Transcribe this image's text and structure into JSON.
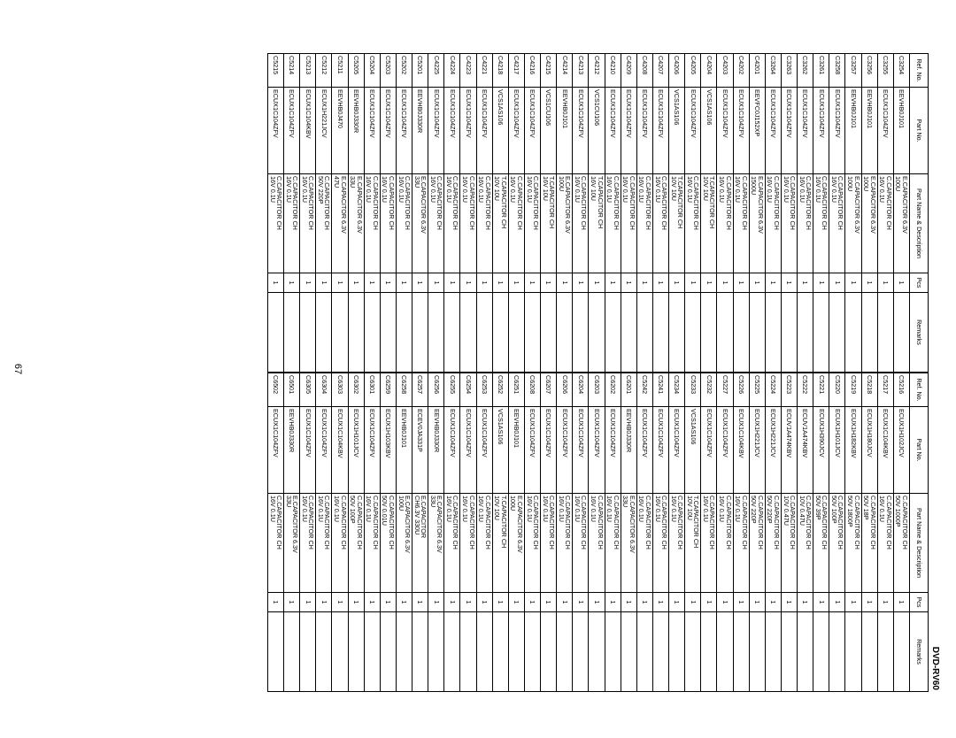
{
  "model": "DVD-RV60",
  "page_number": "67",
  "headers": {
    "ref": "Ref. No.",
    "part": "Part No.",
    "desc": "Part Name & Description",
    "pcs": "Pcs",
    "remarks": "Remarks"
  },
  "left_rows": [
    {
      "ref": "C3254",
      "part": "EEVHB0J101",
      "desc1": "E.CAPACITOR 6.3V",
      "desc2": "100U",
      "pcs": "1",
      "rem": ""
    },
    {
      "ref": "C3255",
      "part": "ECUX1C104ZFV",
      "desc1": "C.CAPACITOR CH",
      "desc2": "16V 0.1U",
      "pcs": "1",
      "rem": ""
    },
    {
      "ref": "C3256",
      "part": "EEVHB0J101",
      "desc1": "E.CAPACITOR 6.3V",
      "desc2": "100U",
      "pcs": "1",
      "rem": ""
    },
    {
      "ref": "C3257",
      "part": "EEVHB0J101",
      "desc1": "E.CAPACITOR 6.3V",
      "desc2": "100U",
      "pcs": "1",
      "rem": ""
    },
    {
      "ref": "C3258",
      "part": "ECUX1C104ZFV",
      "desc1": "C.CAPACITOR CH",
      "desc2": "16V 0.1U",
      "pcs": "1",
      "rem": ""
    },
    {
      "ref": "C3261",
      "part": "ECUX1C104ZFV",
      "desc1": "C.CAPACITOR CH",
      "desc2": "16V 0.1U",
      "pcs": "1",
      "rem": ""
    },
    {
      "ref": "C3262",
      "part": "ECUX1C104ZFV",
      "desc1": "C.CAPACITOR CH",
      "desc2": "16V 0.1U",
      "pcs": "1",
      "rem": ""
    },
    {
      "ref": "C3263",
      "part": "ECUX1C104ZFV",
      "desc1": "C.CAPACITOR CH",
      "desc2": "16V 0.1U",
      "pcs": "1",
      "rem": ""
    },
    {
      "ref": "C3264",
      "part": "ECUX1C104ZFV",
      "desc1": "C.CAPACITOR CH",
      "desc2": "16V 0.1U",
      "pcs": "1",
      "rem": ""
    },
    {
      "ref": "C4201",
      "part": "EEVFC0J152XP",
      "desc1": "E.CAPACITOR 6.3V",
      "desc2": "1500U",
      "pcs": "1",
      "rem": ""
    },
    {
      "ref": "C4202",
      "part": "ECUX1C104ZFV",
      "desc1": "C.CAPACITOR CH",
      "desc2": "16V 0.1U",
      "pcs": "1",
      "rem": ""
    },
    {
      "ref": "C4203",
      "part": "ECUX1C104ZFV",
      "desc1": "C.CAPACITOR CH",
      "desc2": "16V 0.1U",
      "pcs": "1",
      "rem": ""
    },
    {
      "ref": "C4204",
      "part": "VCS1AS106",
      "desc1": "T.CAPACITOR CH",
      "desc2": "10V 10U",
      "pcs": "1",
      "rem": ""
    },
    {
      "ref": "C4205",
      "part": "ECUX1C104ZFV",
      "desc1": "C.CAPACITOR CH",
      "desc2": "16V 0.1U",
      "pcs": "1",
      "rem": ""
    },
    {
      "ref": "C4206",
      "part": "VCS1AS106",
      "desc1": "T.CAPACITOR CH",
      "desc2": "10V 10U",
      "pcs": "1",
      "rem": ""
    },
    {
      "ref": "C4207",
      "part": "ECUX1C104ZFV",
      "desc1": "C.CAPACITOR CH",
      "desc2": "16V 0.1U",
      "pcs": "1",
      "rem": ""
    },
    {
      "ref": "C4208",
      "part": "ECUX1C104ZFV",
      "desc1": "C.CAPACITOR CH",
      "desc2": "16V 0.1U",
      "pcs": "1",
      "rem": ""
    },
    {
      "ref": "C4209",
      "part": "ECUX1C104ZFV",
      "desc1": "C.CAPACITOR CH",
      "desc2": "16V 0.1U",
      "pcs": "1",
      "rem": ""
    },
    {
      "ref": "C4210",
      "part": "ECUX1C104ZFV",
      "desc1": "C.CAPACITOR CH",
      "desc2": "16V 0.1U",
      "pcs": "1",
      "rem": ""
    },
    {
      "ref": "C4212",
      "part": "VCS1CU106",
      "desc1": "T.CAPACITOR CH",
      "desc2": "16V 10U",
      "pcs": "1",
      "rem": ""
    },
    {
      "ref": "C4213",
      "part": "ECUX1C104ZFV",
      "desc1": "C.CAPACITOR CH",
      "desc2": "16V 0.1U",
      "pcs": "1",
      "rem": ""
    },
    {
      "ref": "C4214",
      "part": "EEVHB0J101",
      "desc1": "E.CAPACITOR 6.3V",
      "desc2": "100U",
      "pcs": "1",
      "rem": ""
    },
    {
      "ref": "C4215",
      "part": "VCS1CU106",
      "desc1": "T.CAPACITOR CH",
      "desc2": "16V 10U",
      "pcs": "1",
      "rem": ""
    },
    {
      "ref": "C4216",
      "part": "ECUX1C104ZFV",
      "desc1": "C.CAPACITOR CH",
      "desc2": "16V 0.1U",
      "pcs": "1",
      "rem": ""
    },
    {
      "ref": "C4217",
      "part": "ECUX1C104ZFV",
      "desc1": "C.CAPACITOR CH",
      "desc2": "16V 0.1U",
      "pcs": "1",
      "rem": ""
    },
    {
      "ref": "C4218",
      "part": "VCS1AS106",
      "desc1": "T.CAPACITOR CH",
      "desc2": "10V 10U",
      "pcs": "1",
      "rem": ""
    },
    {
      "ref": "C4221",
      "part": "ECUX1C104ZFV",
      "desc1": "C.CAPACITOR CH",
      "desc2": "16V 0.1U",
      "pcs": "1",
      "rem": ""
    },
    {
      "ref": "C4223",
      "part": "ECUX1C104ZFV",
      "desc1": "C.CAPACITOR CH",
      "desc2": "16V 0.1U",
      "pcs": "1",
      "rem": ""
    },
    {
      "ref": "C4224",
      "part": "ECUX1C104ZFV",
      "desc1": "C.CAPACITOR CH",
      "desc2": "16V 0.1U",
      "pcs": "1",
      "rem": ""
    },
    {
      "ref": "C4225",
      "part": "ECUX1C104ZFV",
      "desc1": "C.CAPACITOR CH",
      "desc2": "16V 0.1U",
      "pcs": "1",
      "rem": ""
    },
    {
      "ref": "C5201",
      "part": "EEVHB0J330R",
      "desc1": "E.CAPACITOR 6.3V",
      "desc2": "33U",
      "pcs": "1",
      "rem": ""
    },
    {
      "ref": "C5202",
      "part": "ECUX1C104ZFV",
      "desc1": "C.CAPACITOR CH",
      "desc2": "16V 0.1U",
      "pcs": "1",
      "rem": ""
    },
    {
      "ref": "C5203",
      "part": "ECUX1C104ZFV",
      "desc1": "C.CAPACITOR CH",
      "desc2": "16V 0.1U",
      "pcs": "1",
      "rem": ""
    },
    {
      "ref": "C5204",
      "part": "ECUX1C104ZFV",
      "desc1": "C.CAPACITOR CH",
      "desc2": "16V 0.1U",
      "pcs": "1",
      "rem": ""
    },
    {
      "ref": "C5205",
      "part": "EEVHB0J330R",
      "desc1": "E.CAPACITOR 6.3V",
      "desc2": "33U",
      "pcs": "1",
      "rem": ""
    },
    {
      "ref": "C5211",
      "part": "EEVHB0J470",
      "desc1": "E.CAPACITOR 6.3V",
      "desc2": "47U",
      "pcs": "1",
      "rem": ""
    },
    {
      "ref": "C5212",
      "part": "ECUX1H221JCV",
      "desc1": "C.CAPACITOR CH",
      "desc2": "50V 220P",
      "pcs": "1",
      "rem": ""
    },
    {
      "ref": "C5213",
      "part": "ECUX1C104KBV",
      "desc1": "C.CAPACITOR CH",
      "desc2": "16V 0.1U",
      "pcs": "1",
      "rem": ""
    },
    {
      "ref": "C5214",
      "part": "ECUX1C104ZFV",
      "desc1": "C.CAPACITOR CH",
      "desc2": "16V 0.1U",
      "pcs": "1",
      "rem": ""
    },
    {
      "ref": "C5215",
      "part": "ECUX1C104ZFV",
      "desc1": "C.CAPACITOR CH",
      "desc2": "16V 0.1U",
      "pcs": "1",
      "rem": ""
    }
  ],
  "right_rows": [
    {
      "ref": "C5216",
      "part": "ECUX1H102JCV",
      "desc1": "C.CAPACITOR CH",
      "desc2": "50V 1000P",
      "pcs": "1",
      "rem": ""
    },
    {
      "ref": "C5217",
      "part": "ECUX1C104KBV",
      "desc1": "C.CAPACITOR CH",
      "desc2": "16V 0.1U",
      "pcs": "1",
      "rem": ""
    },
    {
      "ref": "C5218",
      "part": "ECUX1H180JCV",
      "desc1": "C.CAPACITOR CH",
      "desc2": "50V 18P",
      "pcs": "1",
      "rem": ""
    },
    {
      "ref": "C5219",
      "part": "ECUX1H182KBV",
      "desc1": "C.CAPACITOR CH",
      "desc2": "50V 1800P",
      "pcs": "1",
      "rem": ""
    },
    {
      "ref": "C5220",
      "part": "ECUX1H101JCV",
      "desc1": "C.CAPACITOR CH",
      "desc2": "50V 100P",
      "pcs": "1",
      "rem": ""
    },
    {
      "ref": "C5221",
      "part": "ECUX1H390JCV",
      "desc1": "C.CAPACITOR CH",
      "desc2": "50V 39P",
      "pcs": "1",
      "rem": ""
    },
    {
      "ref": "C5222",
      "part": "ECUV1A474KBV",
      "desc1": "C.CAPACITOR CH",
      "desc2": "10V 0.47U",
      "pcs": "1",
      "rem": ""
    },
    {
      "ref": "C5223",
      "part": "ECUV1A474KBV",
      "desc1": "C.CAPACITOR CH",
      "desc2": "10V 0.47U",
      "pcs": "1",
      "rem": ""
    },
    {
      "ref": "C5224",
      "part": "ECUX1H221JCV",
      "desc1": "C.CAPACITOR CH",
      "desc2": "50V 220P",
      "pcs": "1",
      "rem": ""
    },
    {
      "ref": "C5225",
      "part": "ECUX1H221JCV",
      "desc1": "C.CAPACITOR CH",
      "desc2": "50V 220P",
      "pcs": "1",
      "rem": ""
    },
    {
      "ref": "C5226",
      "part": "ECUX1C104KBV",
      "desc1": "C.CAPACITOR CH",
      "desc2": "16V 0.1U",
      "pcs": "1",
      "rem": ""
    },
    {
      "ref": "C5227",
      "part": "ECUX1C104ZFV",
      "desc1": "C.CAPACITOR CH",
      "desc2": "16V 0.1U",
      "pcs": "1",
      "rem": ""
    },
    {
      "ref": "C5232",
      "part": "ECUX1C104ZFV",
      "desc1": "C.CAPACITOR CH",
      "desc2": "16V 0.1U",
      "pcs": "1",
      "rem": ""
    },
    {
      "ref": "C5233",
      "part": "VCS1AS106",
      "desc1": "T.CAPACITOR CH",
      "desc2": "10V 10U",
      "pcs": "1",
      "rem": ""
    },
    {
      "ref": "C5234",
      "part": "ECUX1C104ZFV",
      "desc1": "C.CAPACITOR CH",
      "desc2": "16V 0.1U",
      "pcs": "1",
      "rem": ""
    },
    {
      "ref": "C5241",
      "part": "ECUX1C104ZFV",
      "desc1": "C.CAPACITOR CH",
      "desc2": "16V 0.1U",
      "pcs": "1",
      "rem": ""
    },
    {
      "ref": "C5242",
      "part": "ECUX1C104ZFV",
      "desc1": "C.CAPACITOR CH",
      "desc2": "16V 0.1U",
      "pcs": "1",
      "rem": ""
    },
    {
      "ref": "C6201",
      "part": "EEVHB0J330R",
      "desc1": "E.CAPACITOR 6.3V",
      "desc2": "33U",
      "pcs": "1",
      "rem": ""
    },
    {
      "ref": "C6202",
      "part": "ECUX1C104ZFV",
      "desc1": "C.CAPACITOR CH",
      "desc2": "16V 0.1U",
      "pcs": "1",
      "rem": ""
    },
    {
      "ref": "C6203",
      "part": "ECUX1C104ZFV",
      "desc1": "C.CAPACITOR CH",
      "desc2": "16V 0.1U",
      "pcs": "1",
      "rem": ""
    },
    {
      "ref": "C6204",
      "part": "ECUX1C104ZFV",
      "desc1": "C.CAPACITOR CH",
      "desc2": "16V 0.1U",
      "pcs": "1",
      "rem": ""
    },
    {
      "ref": "C6206",
      "part": "ECUX1C104ZFV",
      "desc1": "C.CAPACITOR CH",
      "desc2": "16V 0.1U",
      "pcs": "1",
      "rem": ""
    },
    {
      "ref": "C6207",
      "part": "ECUX1C104ZFV",
      "desc1": "C.CAPACITOR CH",
      "desc2": "16V 0.1U",
      "pcs": "1",
      "rem": ""
    },
    {
      "ref": "C6208",
      "part": "ECUX1C104ZFV",
      "desc1": "C.CAPACITOR CH",
      "desc2": "16V 0.1U",
      "pcs": "1",
      "rem": ""
    },
    {
      "ref": "C6251",
      "part": "EEVHB0J101",
      "desc1": "E.CAPACITOR 6.3V",
      "desc2": "100U",
      "pcs": "1",
      "rem": ""
    },
    {
      "ref": "C6252",
      "part": "VCS1AS106",
      "desc1": "T.CAPACITOR CH",
      "desc2": "10V 10U",
      "pcs": "1",
      "rem": ""
    },
    {
      "ref": "C6253",
      "part": "ECUX1C104ZFV",
      "desc1": "C.CAPACITOR CH",
      "desc2": "16V 0.1U",
      "pcs": "1",
      "rem": ""
    },
    {
      "ref": "C6254",
      "part": "ECUX1C104ZFV",
      "desc1": "C.CAPACITOR CH",
      "desc2": "16V 0.1U",
      "pcs": "1",
      "rem": ""
    },
    {
      "ref": "C6255",
      "part": "ECUX1C104ZFV",
      "desc1": "C.CAPACITOR CH",
      "desc2": "16V 0.1U",
      "pcs": "1",
      "rem": ""
    },
    {
      "ref": "C6256",
      "part": "EEVHB0J330R",
      "desc1": "E.CAPACITOR 6.3V",
      "desc2": "33U",
      "pcs": "1",
      "rem": ""
    },
    {
      "ref": "C6257",
      "part": "ECEV0JA331P",
      "desc1": "E.CAPACITOR",
      "desc2": "CH6.3V 330U",
      "pcs": "1",
      "rem": ""
    },
    {
      "ref": "C6258",
      "part": "EEVHB0J101",
      "desc1": "E.CAPACITOR 6.3V",
      "desc2": "100U",
      "pcs": "1",
      "rem": ""
    },
    {
      "ref": "C6259",
      "part": "ECUX1H103KBV",
      "desc1": "C.CAPACITOR CH",
      "desc2": "50V 0.01U",
      "pcs": "1",
      "rem": ""
    },
    {
      "ref": "C6301",
      "part": "ECUX1C104ZFV",
      "desc1": "C.CAPACITOR CH",
      "desc2": "16V 0.1U",
      "pcs": "1",
      "rem": ""
    },
    {
      "ref": "C6302",
      "part": "ECUX1H101JCV",
      "desc1": "C.CAPACITOR CH",
      "desc2": "50V 100P",
      "pcs": "1",
      "rem": ""
    },
    {
      "ref": "C6303",
      "part": "ECUX1C104KBV",
      "desc1": "C.CAPACITOR CH",
      "desc2": "16V 0.1U",
      "pcs": "1",
      "rem": ""
    },
    {
      "ref": "C6304",
      "part": "ECUX1C104ZFV",
      "desc1": "C.CAPACITOR CH",
      "desc2": "16V 0.1U",
      "pcs": "1",
      "rem": ""
    },
    {
      "ref": "C6305",
      "part": "ECUX1C104ZFV",
      "desc1": "C.CAPACITOR CH",
      "desc2": "16V 0.1U",
      "pcs": "1",
      "rem": ""
    },
    {
      "ref": "C6501",
      "part": "EEVHB0J330R",
      "desc1": "E.CAPACITOR 6.3V",
      "desc2": "33U",
      "pcs": "1",
      "rem": ""
    },
    {
      "ref": "C6502",
      "part": "ECUX1C104ZFV",
      "desc1": "C.CAPACITOR CH",
      "desc2": "16V 0.1U",
      "pcs": "1",
      "rem": ""
    }
  ]
}
